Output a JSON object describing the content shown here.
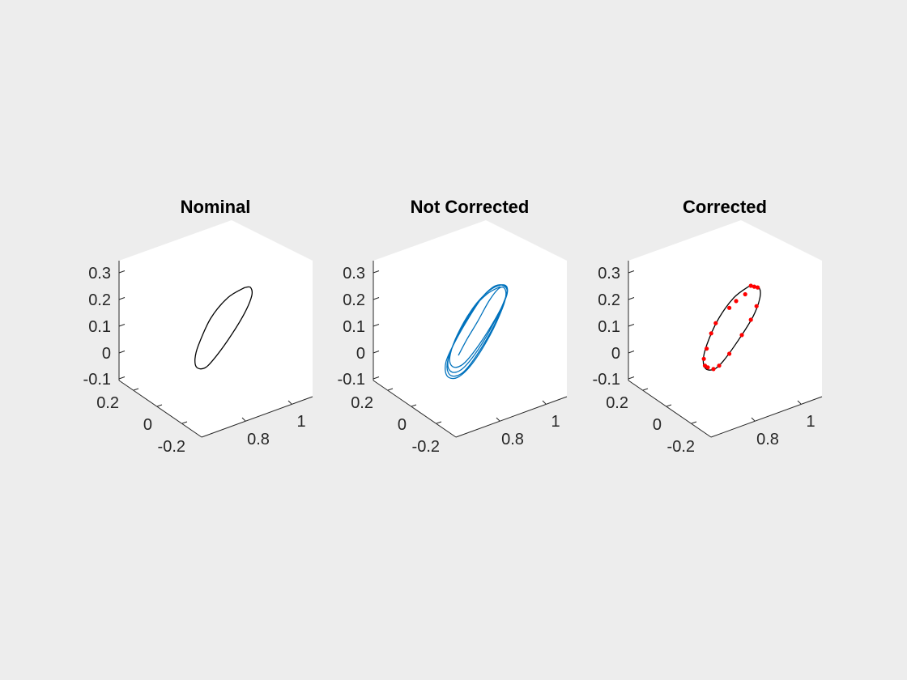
{
  "figure": {
    "background": "#ededed",
    "axes_color": "#262626",
    "panel_color": "#ffffff"
  },
  "chart_data": [
    {
      "type": "line3d",
      "title": "Nominal",
      "view": "isometric",
      "ztick_labels": [
        "0.3",
        "0.2",
        "0.1",
        "0",
        "-0.1"
      ],
      "ytick_labels": [
        "0.2",
        "0",
        "-0.2"
      ],
      "xtick_labels": [
        "1",
        "0.8"
      ],
      "series": [
        {
          "style": "closed-loop",
          "color": "#000000",
          "points": [
            [
              0.52,
              0.98
            ],
            [
              0.22,
              0.86
            ],
            [
              -0.08,
              0.62
            ],
            [
              -0.3,
              0.3
            ],
            [
              -0.36,
              0.14
            ],
            [
              -0.33,
              0.04
            ],
            [
              -0.2,
              0.03
            ],
            [
              -0.05,
              0.12
            ],
            [
              0.22,
              0.36
            ],
            [
              0.5,
              0.66
            ],
            [
              0.64,
              0.88
            ],
            [
              0.62,
              0.98
            ],
            [
              0.52,
              0.98
            ]
          ]
        }
      ]
    },
    {
      "type": "line3d",
      "title": "Not Corrected",
      "view": "isometric",
      "ztick_labels": [
        "0.3",
        "0.2",
        "0.1",
        "0",
        "-0.1"
      ],
      "ytick_labels": [
        "0.2",
        "0",
        "-0.2"
      ],
      "xtick_labels": [
        "1",
        "0.8"
      ],
      "series": [
        {
          "style": "drifting-loop",
          "color": "#0072bd",
          "points": [
            [
              0.54,
              0.99
            ],
            [
              0.3,
              0.9
            ],
            [
              0.02,
              0.7
            ],
            [
              -0.22,
              0.42
            ],
            [
              -0.34,
              0.2
            ],
            [
              -0.34,
              0.08
            ],
            [
              -0.24,
              0.04
            ],
            [
              -0.08,
              0.1
            ],
            [
              0.18,
              0.32
            ],
            [
              0.46,
              0.62
            ],
            [
              0.64,
              0.86
            ],
            [
              0.66,
              0.98
            ],
            [
              0.56,
              1.01
            ],
            [
              0.34,
              0.94
            ],
            [
              0.06,
              0.74
            ],
            [
              -0.2,
              0.44
            ],
            [
              -0.36,
              0.18
            ],
            [
              -0.38,
              0.04
            ],
            [
              -0.28,
              -0.02
            ],
            [
              -0.1,
              0.04
            ],
            [
              0.16,
              0.26
            ],
            [
              0.44,
              0.58
            ],
            [
              0.62,
              0.84
            ],
            [
              0.66,
              0.96
            ],
            [
              0.58,
              1.01
            ],
            [
              0.4,
              0.98
            ],
            [
              0.14,
              0.8
            ],
            [
              -0.14,
              0.5
            ],
            [
              -0.34,
              0.22
            ],
            [
              -0.4,
              0.04
            ],
            [
              -0.32,
              -0.06
            ],
            [
              -0.12,
              -0.02
            ],
            [
              0.12,
              0.18
            ],
            [
              0.42,
              0.52
            ],
            [
              0.6,
              0.8
            ],
            [
              0.66,
              0.94
            ],
            [
              0.6,
              1.0
            ],
            [
              0.46,
              1.0
            ],
            [
              0.24,
              0.88
            ],
            [
              -0.02,
              0.62
            ],
            [
              -0.26,
              0.34
            ],
            [
              -0.42,
              0.1
            ],
            [
              -0.4,
              -0.06
            ],
            [
              -0.22,
              -0.08
            ],
            [
              0.04,
              0.08
            ],
            [
              0.36,
              0.42
            ],
            [
              0.58,
              0.74
            ],
            [
              0.64,
              0.9
            ],
            [
              0.6,
              0.98
            ],
            [
              0.5,
              0.96
            ],
            [
              0.34,
              0.82
            ],
            [
              0.14,
              0.58
            ],
            [
              -0.04,
              0.38
            ],
            [
              -0.2,
              0.18
            ]
          ]
        }
      ]
    },
    {
      "type": "line3d",
      "title": "Corrected",
      "view": "isometric",
      "ztick_labels": [
        "0.3",
        "0.2",
        "0.1",
        "0",
        "-0.1"
      ],
      "ytick_labels": [
        "0.2",
        "0",
        "-0.2"
      ],
      "xtick_labels": [
        "1",
        "0.8"
      ],
      "series": [
        {
          "style": "closed-loop",
          "color": "#000000",
          "points": [
            [
              0.44,
              1.0
            ],
            [
              0.16,
              0.86
            ],
            [
              -0.12,
              0.6
            ],
            [
              -0.32,
              0.3
            ],
            [
              -0.38,
              0.12
            ],
            [
              -0.33,
              0.02
            ],
            [
              -0.18,
              0.02
            ],
            [
              -0.02,
              0.12
            ],
            [
              0.24,
              0.36
            ],
            [
              0.5,
              0.64
            ],
            [
              0.62,
              0.86
            ],
            [
              0.6,
              0.98
            ],
            [
              0.44,
              1.0
            ]
          ]
        },
        {
          "style": "markers",
          "color": "#ff0000",
          "points": [
            [
              0.46,
              1.0
            ],
            [
              0.52,
              0.99
            ],
            [
              0.58,
              0.98
            ],
            [
              0.36,
              0.9
            ],
            [
              0.2,
              0.82
            ],
            [
              0.08,
              0.74
            ],
            [
              -0.16,
              0.56
            ],
            [
              -0.24,
              0.44
            ],
            [
              -0.32,
              0.26
            ],
            [
              -0.37,
              0.14
            ],
            [
              -0.35,
              0.06
            ],
            [
              -0.3,
              0.04
            ],
            [
              -0.2,
              0.02
            ],
            [
              -0.1,
              0.06
            ],
            [
              0.08,
              0.2
            ],
            [
              0.3,
              0.42
            ],
            [
              0.46,
              0.6
            ],
            [
              0.56,
              0.76
            ]
          ]
        }
      ]
    }
  ]
}
